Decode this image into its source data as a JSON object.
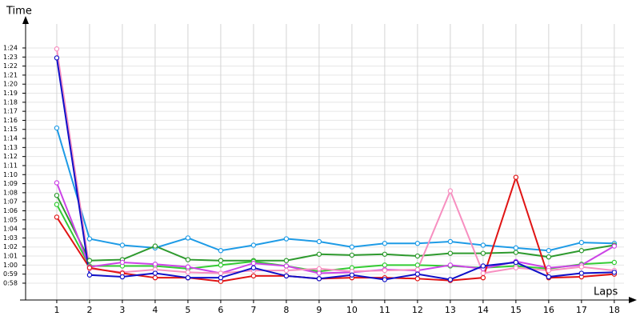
{
  "chart_data": {
    "type": "line",
    "y_label": "Time",
    "x_label": "Laps",
    "x": [
      1,
      2,
      3,
      4,
      5,
      6,
      7,
      8,
      9,
      10,
      11,
      12,
      13,
      14,
      15,
      16,
      17,
      18
    ],
    "xlim": [
      0.05,
      18.54
    ],
    "xticks": [
      1,
      2,
      3,
      4,
      5,
      6,
      7,
      8,
      9,
      10,
      11,
      12,
      13,
      14,
      15,
      16,
      17,
      18
    ],
    "ylim": [
      56.14,
      86.65
    ],
    "yticks": [
      {
        "value": 58,
        "label": "0:58"
      },
      {
        "value": 59,
        "label": "0:59"
      },
      {
        "value": 60,
        "label": "1:00"
      },
      {
        "value": 61,
        "label": "1:01"
      },
      {
        "value": 62,
        "label": "1:02"
      },
      {
        "value": 63,
        "label": "1:03"
      },
      {
        "value": 64,
        "label": "1:04"
      },
      {
        "value": 65,
        "label": "1:05"
      },
      {
        "value": 66,
        "label": "1:06"
      },
      {
        "value": 67,
        "label": "1:07"
      },
      {
        "value": 68,
        "label": "1:08"
      },
      {
        "value": 69,
        "label": "1:09"
      },
      {
        "value": 70,
        "label": "1:10"
      },
      {
        "value": 71,
        "label": "1:11"
      },
      {
        "value": 72,
        "label": "1:12"
      },
      {
        "value": 73,
        "label": "1:13"
      },
      {
        "value": 74,
        "label": "1:14"
      },
      {
        "value": 75,
        "label": "1:15"
      },
      {
        "value": 76,
        "label": "1:16"
      },
      {
        "value": 77,
        "label": "1:17"
      },
      {
        "value": 78,
        "label": "1:18"
      },
      {
        "value": 79,
        "label": "1:19"
      },
      {
        "value": 80,
        "label": "1:20"
      },
      {
        "value": 81,
        "label": "1:21"
      },
      {
        "value": 82,
        "label": "1:22"
      },
      {
        "value": 83,
        "label": "1:23"
      },
      {
        "value": 84,
        "label": "1:24"
      }
    ],
    "grid": true,
    "series": [
      {
        "color": "#1e9be6",
        "values": [
          75.15,
          62.9,
          62.2,
          61.9,
          63.0,
          61.6,
          62.2,
          62.9,
          62.6,
          62.0,
          62.4,
          62.4,
          62.6,
          62.2,
          61.9,
          61.6,
          62.5,
          62.4
        ]
      },
      {
        "color": "#2e9a2e",
        "values": [
          67.7,
          60.5,
          60.6,
          62.1,
          60.6,
          60.5,
          60.5,
          60.5,
          61.2,
          61.1,
          61.2,
          61.0,
          61.3,
          61.3,
          61.4,
          60.9,
          61.6,
          62.2
        ]
      },
      {
        "color": "#33cc33",
        "values": [
          66.7,
          59.9,
          59.9,
          59.9,
          59.6,
          60.0,
          60.4,
          59.9,
          59.3,
          59.7,
          60.0,
          60.0,
          59.9,
          59.7,
          59.9,
          59.6,
          60.1,
          60.3
        ]
      },
      {
        "color": "#cc44e6",
        "values": [
          69.1,
          59.8,
          60.3,
          60.1,
          59.8,
          59.1,
          60.2,
          59.9,
          59.1,
          59.2,
          59.5,
          59.4,
          60.0,
          59.6,
          60.4,
          59.7,
          60.0,
          62.1
        ]
      },
      {
        "color": "#f78fc0",
        "values": [
          83.9,
          59.6,
          59.2,
          59.5,
          59.2,
          59.1,
          59.4,
          59.4,
          59.6,
          59.3,
          59.4,
          59.5,
          68.2,
          59.1,
          59.7,
          59.4,
          59.8,
          59.4
        ]
      },
      {
        "color": "#e01414",
        "values": [
          65.3,
          59.7,
          59.1,
          58.6,
          58.6,
          58.2,
          58.8,
          58.8,
          58.5,
          58.6,
          58.6,
          58.5,
          58.3,
          58.6,
          69.7,
          58.6,
          58.7,
          59.0
        ]
      },
      {
        "color": "#1010c8",
        "values": [
          82.9,
          58.9,
          58.7,
          59.1,
          58.6,
          58.6,
          59.7,
          58.8,
          58.5,
          58.9,
          58.4,
          59.0,
          58.4,
          59.9,
          60.3,
          58.7,
          59.1,
          59.2
        ]
      }
    ]
  }
}
